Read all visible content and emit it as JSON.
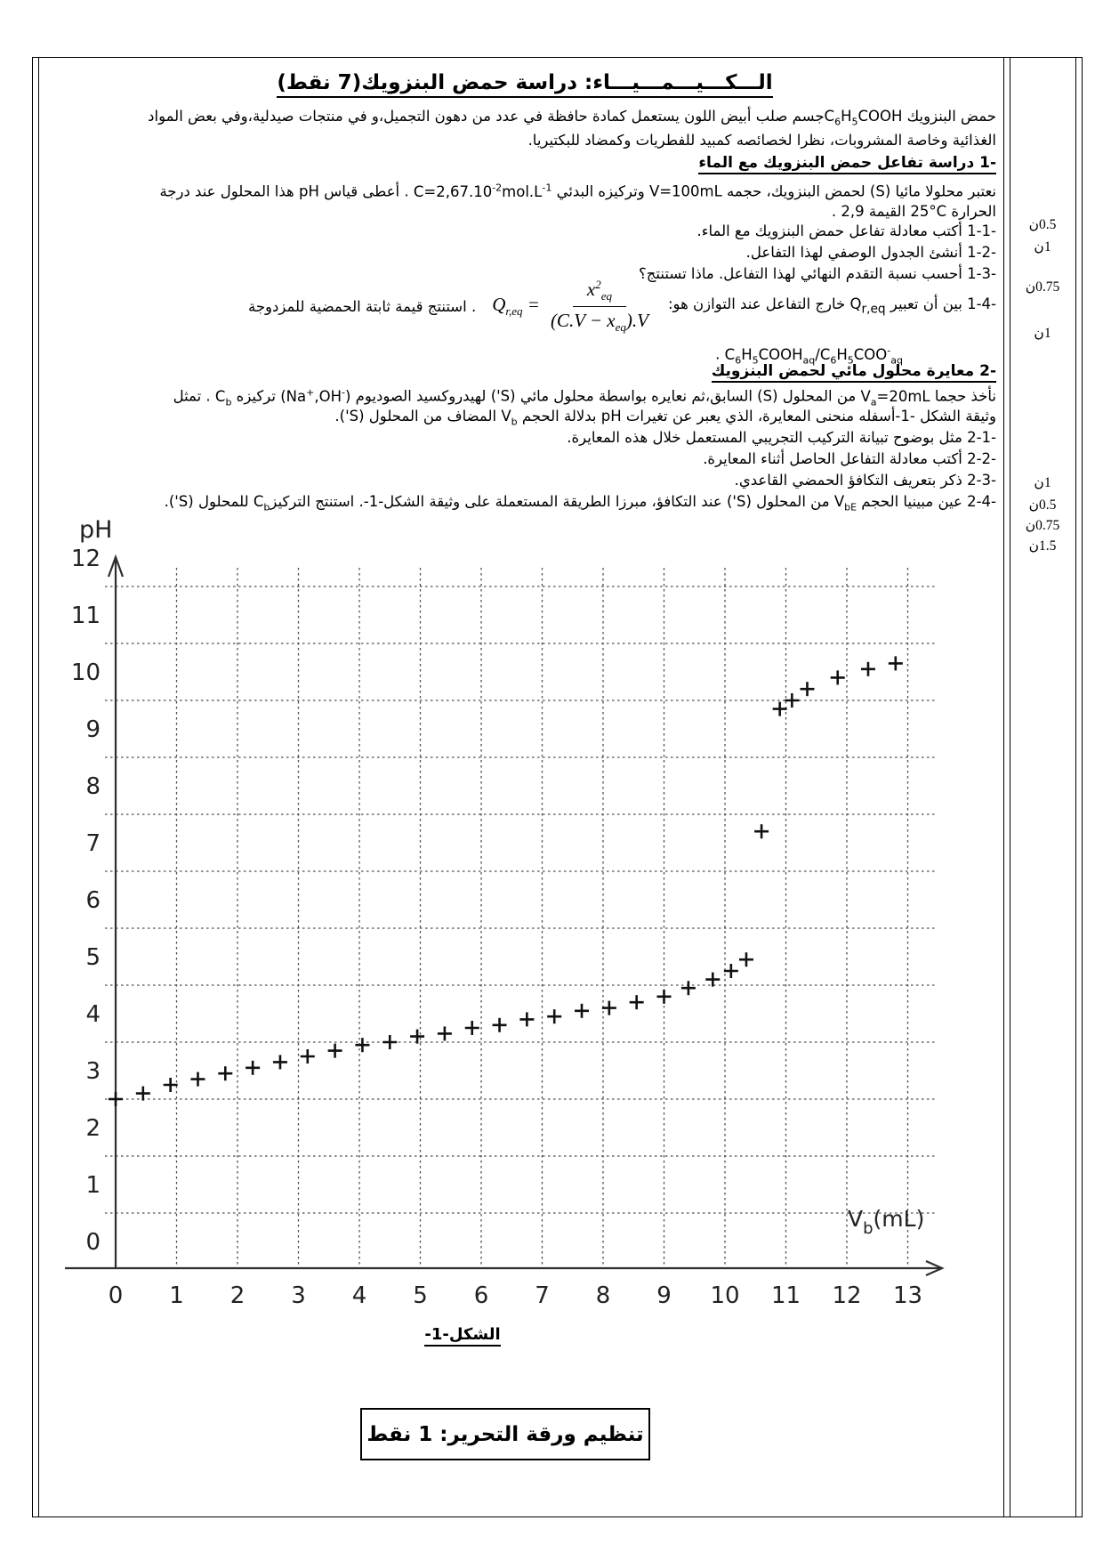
{
  "header": {
    "title_html": "الـــكـــيـــمـــيـــاء: دراسة حمض البنزويك(7 نقط)"
  },
  "intro": {
    "line1_html": "حمض البنزويك <span dir=\"ltr\">C<sub>6</sub>H<sub>5</sub>COOH</span>جسم صلب أبيض اللون يستعمل كمادة حافظة في عدد من دهون التجميل،و في منتجات صيدلية،وفي بعض المواد",
    "line2_html": "الغذائية وخاصة المشروبات، نظرا لخصائصه كمبيد للفطريات وكمضاد للبكتيريا."
  },
  "section1": {
    "heading_html": "<span dir=\"ltr\">1-</span> دراسة تفاعل حمض البنزويك مع الماء",
    "line1_html": "نعتبر محلولا مائيا (S) لحمض البنزويك، حجمه <span dir=\"ltr\">V=100mL</span> وتركيزه البدئي <span dir=\"ltr\">C=2,67.10<sup>-2</sup>mol.L<sup>-1</sup></span> . أعطى قياس pH هذا المحلول عند درجة",
    "line2_html": "الحرارة <span dir=\"ltr\">25°C</span> القيمة <span dir=\"ltr\">2,9</span> .",
    "q11_html": "<span dir=\"ltr\">1-1-</span> أكتب معادلة تفاعل حمض البنزويك مع الماء.",
    "q12_html": "<span dir=\"ltr\">1-2-</span> أنشئ الجدول الوصفي لهذا التفاعل.",
    "q13_html": "<span dir=\"ltr\">1-3-</span> أحسب نسبة التقدم النهائي لهذا التفاعل. ماذا تستنتج؟",
    "q14_right_html": "<span dir=\"ltr\">1-4-</span> بين أن تعبير <span dir=\"ltr\">Q<sub>r,eq</sub></span> خارج التفاعل عند التوازن هو:",
    "q14_left_html": ". استنتج قيمة ثابتة الحمضية للمزدوجة",
    "acid_pair_html": "<span dir=\"ltr\">C<sub>6</sub>H<sub>5</sub>COOH<sub>aq</sub>/C<sub>6</sub>H<sub>5</sub>COO<sup>-</sup><sub>aq</sub></span> ."
  },
  "formula": {
    "lhs_html": "Q<sub>r,eq</sub> =",
    "numerator_html": "x<sup>2</sup><sub>eq</sub>",
    "denominator_html": "(C.V − x<sub>eq</sub>).V"
  },
  "section2": {
    "heading_html": "<span dir=\"ltr\">2-</span> معايرة محلول مائي لحمض البنزويك",
    "line1_html": "نأخذ حجما <span dir=\"ltr\">V<sub>a</sub>=20mL</span> من المحلول (S) السابق،ثم نعايره بواسطة محلول مائي (S') لهيدروكسيد الصوديوم <span dir=\"ltr\">(Na<sup>+</sup>,OH<sup>-</sup>)</span> تركيزه <span dir=\"ltr\">C<sub>b</sub></span> . تمثل",
    "line2_html": "وثيقة الشكل <span dir=\"ltr\">-1-</span>أسفله منحنى المعايرة، الذي يعبر عن تغيرات pH بدلالة الحجم <span dir=\"ltr\">V<sub>b</sub></span> المضاف من المحلول (S').",
    "q21_html": "<span dir=\"ltr\">2-1-</span> مثل بوضوح تبيانة التركيب التجريبي المستعمل خلال هذه المعايرة.",
    "q22_html": "<span dir=\"ltr\">2-2-</span> أكتب معادلة التفاعل الحاصل أثناء المعايرة.",
    "q23_html": "<span dir=\"ltr\">2-3-</span> ذكر بتعريف التكافؤ الحمضي القاعدي.",
    "q24_html": "<span dir=\"ltr\">2-4-</span> عين مبينيا الحجم <span dir=\"ltr\">V<sub>bE</sub></span> من المحلول (S') عند التكافؤ، مبرزا الطريقة المستعملة على وثيقة الشكل<span dir=\"ltr\">-1-</span>. استنتج التركيز<span dir=\"ltr\">C<sub>b</sub></span> للمحلول (S')."
  },
  "scores": [
    "0.5ن",
    "1ن",
    "0.75ن",
    "1ن",
    "1ن",
    "0.5ن",
    "0.75ن",
    "1.5ن"
  ],
  "figure": {
    "caption_html": "الشكل<span dir=\"ltr\">-1-</span>"
  },
  "footer": {
    "box_label": "تنظيم ورقة التحرير: 1 نقط"
  },
  "chart_data": {
    "type": "scatter",
    "marker": "plus",
    "title": "",
    "xlabel": "Vb (mL)",
    "ylabel": "pH",
    "xlabel_parts": {
      "main": "V",
      "sub": "b",
      "unit": "(mL)"
    },
    "xlim": [
      0,
      13
    ],
    "ylim": [
      0,
      12
    ],
    "xticks": [
      0,
      1,
      2,
      3,
      4,
      5,
      6,
      7,
      8,
      9,
      10,
      11,
      12,
      13
    ],
    "yticks": [
      0,
      1,
      2,
      3,
      4,
      5,
      6,
      7,
      8,
      9,
      10,
      11,
      12
    ],
    "grid": true,
    "grid_style": "dashed",
    "points": [
      [
        0,
        2.5
      ],
      [
        0.45,
        2.6
      ],
      [
        0.9,
        2.75
      ],
      [
        1.35,
        2.85
      ],
      [
        1.8,
        2.95
      ],
      [
        2.25,
        3.05
      ],
      [
        2.7,
        3.15
      ],
      [
        3.15,
        3.25
      ],
      [
        3.6,
        3.35
      ],
      [
        4.05,
        3.45
      ],
      [
        4.5,
        3.5
      ],
      [
        4.95,
        3.6
      ],
      [
        5.4,
        3.65
      ],
      [
        5.85,
        3.75
      ],
      [
        6.3,
        3.8
      ],
      [
        6.75,
        3.9
      ],
      [
        7.2,
        3.95
      ],
      [
        7.65,
        4.05
      ],
      [
        8.1,
        4.1
      ],
      [
        8.55,
        4.2
      ],
      [
        9,
        4.3
      ],
      [
        9.4,
        4.45
      ],
      [
        9.8,
        4.6
      ],
      [
        10.1,
        4.75
      ],
      [
        10.35,
        4.95
      ],
      [
        10.6,
        7.2
      ],
      [
        10.9,
        9.35
      ],
      [
        11.1,
        9.5
      ],
      [
        11.35,
        9.7
      ],
      [
        11.85,
        9.9
      ],
      [
        12.35,
        10.05
      ],
      [
        12.8,
        10.15
      ]
    ]
  }
}
